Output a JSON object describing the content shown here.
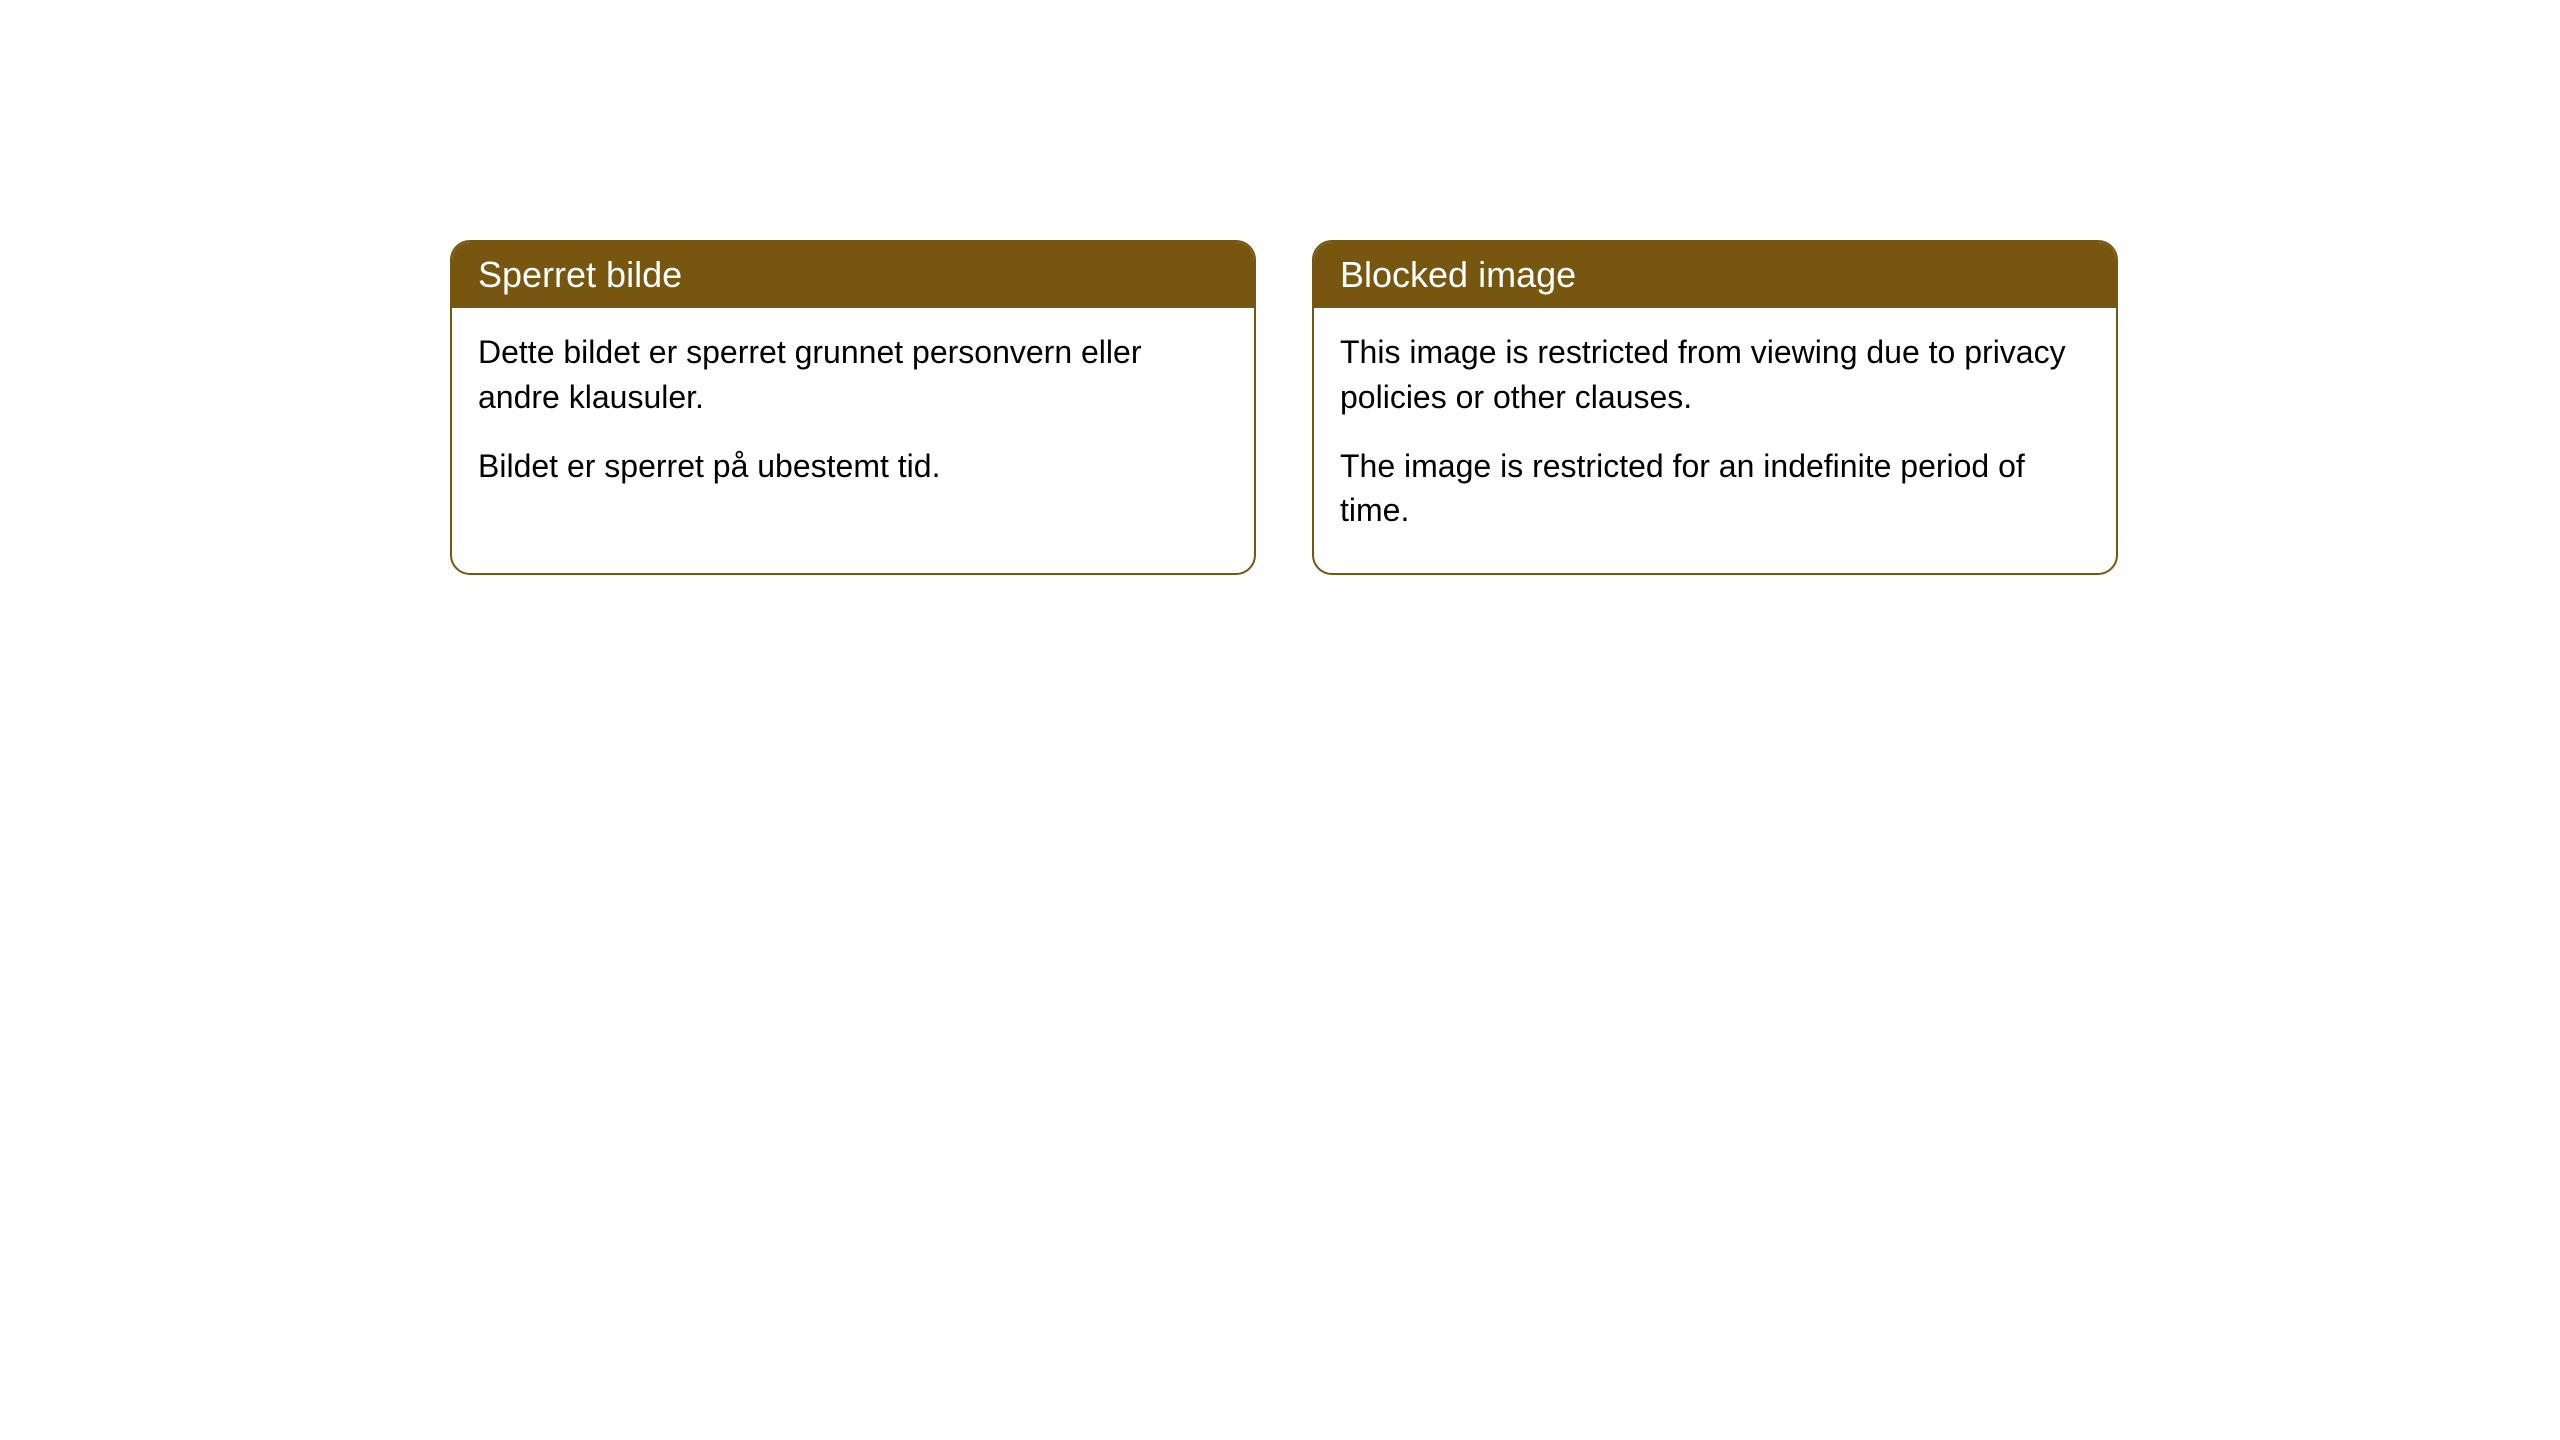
{
  "cards": [
    {
      "title": "Sperret bilde",
      "paragraph1": "Dette bildet er sperret grunnet personvern eller andre klausuler.",
      "paragraph2": "Bildet er sperret på ubestemt tid."
    },
    {
      "title": "Blocked image",
      "paragraph1": "This image is restricted from viewing due to privacy policies or other clauses.",
      "paragraph2": "The image is restricted for an indefinite period of time."
    }
  ],
  "styling": {
    "header_bg_color": "#775610",
    "header_text_color": "#ffffff",
    "border_color": "#775610",
    "body_bg_color": "#ffffff",
    "body_text_color": "#000000",
    "border_radius": 20,
    "header_fontsize": 36,
    "body_fontsize": 32
  }
}
